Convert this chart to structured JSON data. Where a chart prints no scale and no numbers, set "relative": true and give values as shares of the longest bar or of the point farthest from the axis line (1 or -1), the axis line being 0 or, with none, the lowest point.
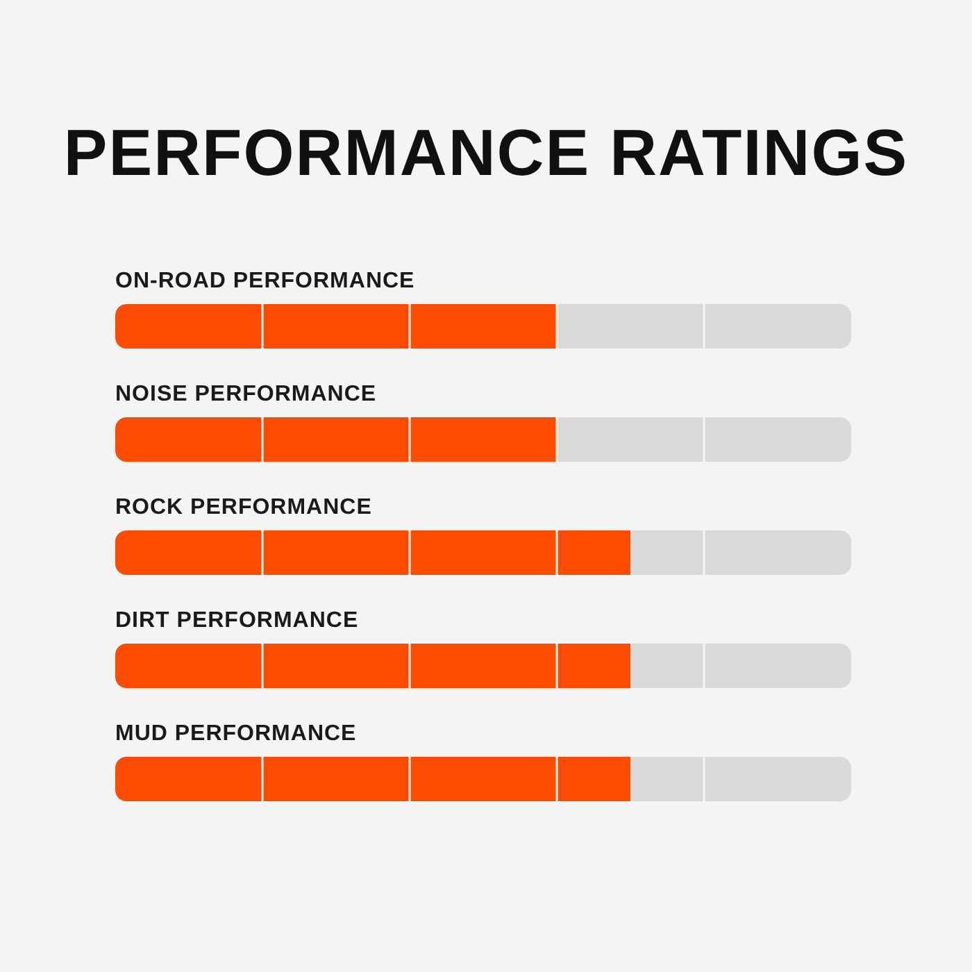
{
  "chart_data": {
    "type": "bar",
    "orientation": "horizontal",
    "relative": true,
    "title": "PERFORMANCE RATINGS",
    "categories": [
      "ON-ROAD PERFORMANCE",
      "NOISE PERFORMANCE",
      "ROCK PERFORMANCE",
      "DIRT PERFORMANCE",
      "MUD PERFORMANCE"
    ],
    "values": [
      0.857,
      0.857,
      1,
      1,
      1
    ],
    "color": "#fc4c02"
  }
}
